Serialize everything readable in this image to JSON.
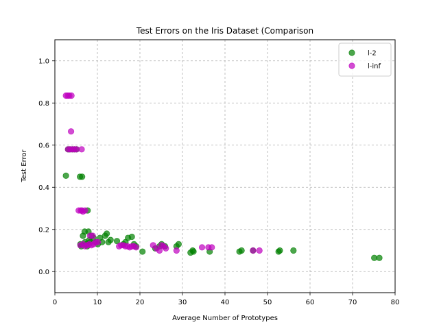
{
  "chart_data": {
    "type": "scatter",
    "title": "Test Errors on the Iris Dataset (Comparison",
    "xlabel": "Average Number of Prototypes",
    "ylabel": "Test Error",
    "xlim": [
      0,
      80
    ],
    "ylim": [
      -0.1,
      1.1
    ],
    "xticks": [
      0,
      10,
      20,
      30,
      40,
      50,
      60,
      70,
      80
    ],
    "yticks": [
      0.0,
      0.2,
      0.4,
      0.6,
      0.8,
      1.0
    ],
    "xtick_labels": [
      "0",
      "10",
      "20",
      "30",
      "40",
      "50",
      "60",
      "70",
      "80"
    ],
    "ytick_labels": [
      "0.0",
      "0.2",
      "0.4",
      "0.6",
      "0.8",
      "1.0"
    ],
    "grid": true,
    "legend_position": "top-right",
    "series": [
      {
        "name": "l-2",
        "color": "#008000",
        "points": [
          [
            2.6,
            0.455
          ],
          [
            3.1,
            0.58
          ],
          [
            3.5,
            0.58
          ],
          [
            4.1,
            0.58
          ],
          [
            4.6,
            0.58
          ],
          [
            5.1,
            0.58
          ],
          [
            5.9,
            0.45
          ],
          [
            6.4,
            0.45
          ],
          [
            6.0,
            0.13
          ],
          [
            6.2,
            0.12
          ],
          [
            6.6,
            0.17
          ],
          [
            7.0,
            0.19
          ],
          [
            7.1,
            0.14
          ],
          [
            7.4,
            0.13
          ],
          [
            7.6,
            0.12
          ],
          [
            7.7,
            0.29
          ],
          [
            7.9,
            0.19
          ],
          [
            8.1,
            0.15
          ],
          [
            8.3,
            0.14
          ],
          [
            8.6,
            0.17
          ],
          [
            9.1,
            0.16
          ],
          [
            9.6,
            0.14
          ],
          [
            10.1,
            0.13
          ],
          [
            10.6,
            0.16
          ],
          [
            11.1,
            0.14
          ],
          [
            11.8,
            0.17
          ],
          [
            12.2,
            0.18
          ],
          [
            12.6,
            0.14
          ],
          [
            13.1,
            0.15
          ],
          [
            14.6,
            0.145
          ],
          [
            16.1,
            0.13
          ],
          [
            16.6,
            0.14
          ],
          [
            17.2,
            0.16
          ],
          [
            18.1,
            0.165
          ],
          [
            18.6,
            0.13
          ],
          [
            19.1,
            0.12
          ],
          [
            20.6,
            0.095
          ],
          [
            23.6,
            0.11
          ],
          [
            24.6,
            0.12
          ],
          [
            25.1,
            0.13
          ],
          [
            25.9,
            0.12
          ],
          [
            28.6,
            0.12
          ],
          [
            29.1,
            0.13
          ],
          [
            31.9,
            0.09
          ],
          [
            32.4,
            0.1
          ],
          [
            32.6,
            0.095
          ],
          [
            36.4,
            0.095
          ],
          [
            43.4,
            0.095
          ],
          [
            43.9,
            0.1
          ],
          [
            46.6,
            0.1
          ],
          [
            52.6,
            0.095
          ],
          [
            52.9,
            0.1
          ],
          [
            56.1,
            0.1
          ],
          [
            75.1,
            0.065
          ],
          [
            76.3,
            0.065
          ]
        ]
      },
      {
        "name": "l-inf",
        "color": "#bf00bf",
        "points": [
          [
            2.6,
            0.835
          ],
          [
            3.0,
            0.835
          ],
          [
            3.4,
            0.835
          ],
          [
            3.9,
            0.835
          ],
          [
            3.1,
            0.58
          ],
          [
            3.6,
            0.58
          ],
          [
            3.8,
            0.665
          ],
          [
            4.1,
            0.58
          ],
          [
            4.6,
            0.58
          ],
          [
            5.1,
            0.58
          ],
          [
            6.3,
            0.58
          ],
          [
            5.6,
            0.29
          ],
          [
            6.1,
            0.29
          ],
          [
            6.4,
            0.29
          ],
          [
            6.6,
            0.285
          ],
          [
            7.1,
            0.29
          ],
          [
            6.0,
            0.125
          ],
          [
            6.6,
            0.13
          ],
          [
            7.1,
            0.12
          ],
          [
            7.6,
            0.125
          ],
          [
            8.1,
            0.13
          ],
          [
            8.3,
            0.17
          ],
          [
            8.6,
            0.125
          ],
          [
            8.9,
            0.17
          ],
          [
            9.1,
            0.13
          ],
          [
            9.6,
            0.14
          ],
          [
            10.1,
            0.14
          ],
          [
            15.1,
            0.12
          ],
          [
            15.6,
            0.125
          ],
          [
            16.1,
            0.125
          ],
          [
            16.6,
            0.12
          ],
          [
            17.1,
            0.12
          ],
          [
            17.6,
            0.115
          ],
          [
            18.1,
            0.12
          ],
          [
            18.6,
            0.12
          ],
          [
            19.1,
            0.115
          ],
          [
            23.1,
            0.125
          ],
          [
            23.9,
            0.11
          ],
          [
            24.6,
            0.1
          ],
          [
            25.1,
            0.125
          ],
          [
            25.6,
            0.12
          ],
          [
            26.1,
            0.11
          ],
          [
            28.6,
            0.1
          ],
          [
            34.6,
            0.115
          ],
          [
            36.1,
            0.115
          ],
          [
            36.9,
            0.115
          ],
          [
            46.6,
            0.1
          ],
          [
            48.1,
            0.1
          ]
        ]
      }
    ]
  }
}
